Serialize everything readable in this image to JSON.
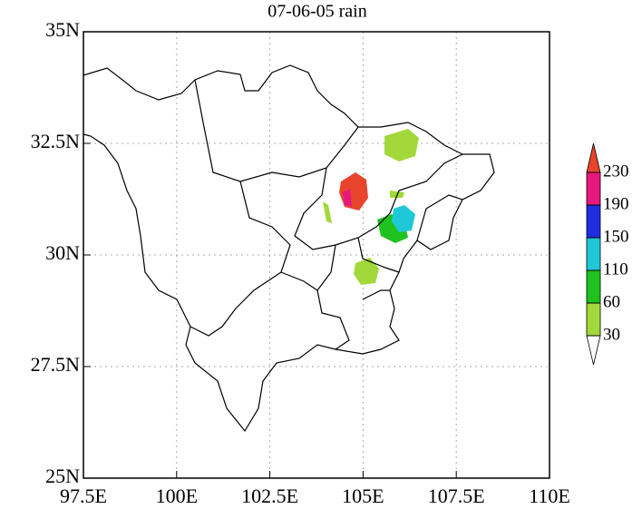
{
  "chart_data": {
    "type": "map",
    "title": "07-06-05 rain",
    "xlim": [
      97.5,
      110
    ],
    "ylim": [
      25,
      35
    ],
    "xticks": [
      {
        "value": 97.5,
        "label": "97.5E"
      },
      {
        "value": 100,
        "label": "100E"
      },
      {
        "value": 102.5,
        "label": "102.5E"
      },
      {
        "value": 105,
        "label": "105E"
      },
      {
        "value": 107.5,
        "label": "107.5E"
      },
      {
        "value": 110,
        "label": "110E"
      }
    ],
    "yticks": [
      {
        "value": 25,
        "label": "25N"
      },
      {
        "value": 27.5,
        "label": "27.5N"
      },
      {
        "value": 30,
        "label": "30N"
      },
      {
        "value": 32.5,
        "label": "32.5N"
      },
      {
        "value": 35,
        "label": "35N"
      }
    ],
    "grid": true,
    "colorbar": {
      "levels": [
        30,
        60,
        110,
        150,
        190,
        230
      ],
      "colors": [
        "#ffffff",
        "#a2d83a",
        "#1fc21f",
        "#1fc8d6",
        "#1f2ee0",
        "#e6187e",
        "#e8432b"
      ]
    }
  }
}
